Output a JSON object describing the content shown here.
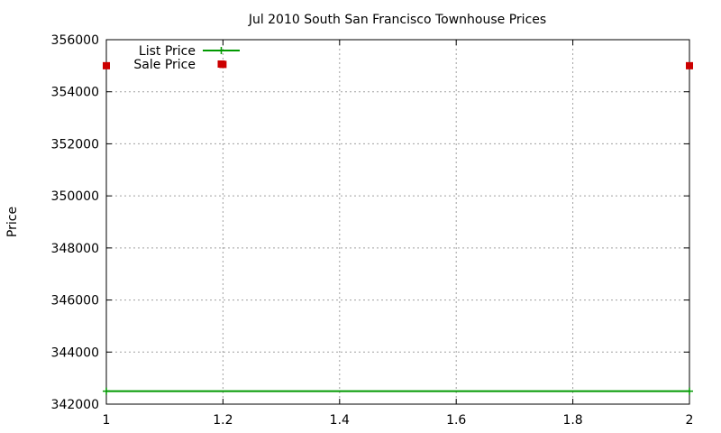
{
  "chart_data": {
    "type": "scatter",
    "title": "Jul 2010 South San Francisco Townhouse Prices",
    "xlabel": "",
    "ylabel": "Price",
    "xlim": [
      1,
      2
    ],
    "ylim": [
      342000,
      356000
    ],
    "x_ticks": [
      "1",
      "1.2",
      "1.4",
      "1.6",
      "1.8",
      "2"
    ],
    "x_tick_values": [
      1,
      1.2,
      1.4,
      1.6,
      1.8,
      2
    ],
    "y_ticks": [
      "342000",
      "344000",
      "346000",
      "348000",
      "350000",
      "352000",
      "354000",
      "356000"
    ],
    "y_tick_values": [
      342000,
      344000,
      346000,
      348000,
      350000,
      352000,
      354000,
      356000
    ],
    "grid": true,
    "legend_position": "top-left",
    "series": [
      {
        "name": "List Price",
        "style": "linespoints",
        "color": "#009900",
        "points": [
          {
            "x": 1,
            "y": 342500
          },
          {
            "x": 2,
            "y": 342500
          }
        ]
      },
      {
        "name": "Sale Price",
        "style": "points",
        "color": "#cc0000",
        "points": [
          {
            "x": 1,
            "y": 355000
          },
          {
            "x": 1.2,
            "y": 355050
          },
          {
            "x": 2,
            "y": 355000
          }
        ]
      }
    ]
  }
}
